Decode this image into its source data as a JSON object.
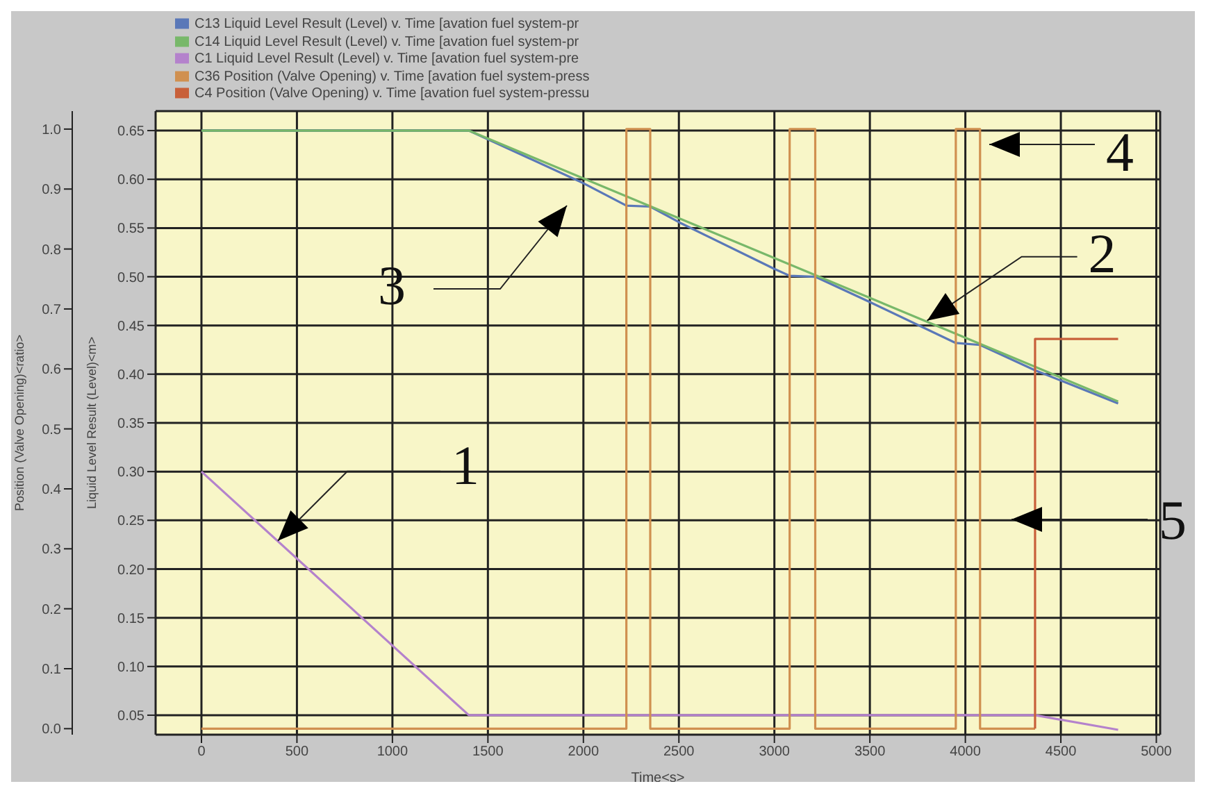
{
  "chart_data": {
    "type": "line",
    "xlabel": "Time<s>",
    "ylabel": "Liquid Level Result (Level)<m>",
    "y2label": "Position (Valve Opening)<ratio>",
    "xlim": [
      -240,
      5020
    ],
    "xticks": [
      0,
      500,
      1000,
      1500,
      2000,
      2500,
      3000,
      3500,
      4000,
      4500,
      5000
    ],
    "ylim": [
      0.03,
      0.67
    ],
    "yticks": [
      0.05,
      {
        "value": 0.1,
        "label": "0.10"
      },
      0.15,
      {
        "value": 0.2,
        "label": "0.20"
      },
      0.25,
      {
        "value": 0.3,
        "label": "0.30"
      },
      0.35,
      {
        "value": 0.4,
        "label": "0.40"
      },
      0.45,
      {
        "value": 0.5,
        "label": "0.50"
      },
      0.55,
      {
        "value": 0.6,
        "label": "0.60"
      },
      0.65
    ],
    "y2lim": [
      -0.01,
      1.03
    ],
    "y2ticks": [
      {
        "value": 0,
        "label": "0.0"
      },
      0.1,
      0.2,
      0.3,
      0.4,
      0.5,
      0.6,
      0.7,
      0.8,
      0.9,
      {
        "value": 1,
        "label": "1.0"
      }
    ],
    "grid": true,
    "legend": "top left",
    "series": [
      {
        "name": "C13 Liquid Level Result (Level) v. Time [avation fuel system-pr",
        "color": "#5a78b8",
        "x": [
          0,
          1400,
          2000,
          2225,
          2350,
          2500,
          3000,
          3080,
          3214,
          3500,
          3950,
          4077,
          4365,
          4800
        ],
        "values": [
          0.65,
          0.65,
          0.596,
          0.573,
          0.572,
          0.556,
          0.508,
          0.501,
          0.5,
          0.474,
          0.432,
          0.43,
          0.404,
          0.37
        ]
      },
      {
        "name": "C14 Liquid Level Result (Level) v. Time [avation fuel system-pr",
        "color": "#78b86a",
        "x": [
          0,
          1400,
          4800
        ],
        "values": [
          0.65,
          0.65,
          0.372
        ]
      },
      {
        "name": "C1 Liquid Level Result (Level) v. Time [avation fuel system-pre",
        "color": "#b482cc",
        "x": [
          0,
          1400,
          4365,
          4800
        ],
        "values": [
          0.3,
          0.05,
          0.05,
          0.035
        ]
      },
      {
        "name": "C36 Position (Valve Opening) v. Time [avation fuel system-press",
        "color": "#d09050",
        "axis": "y2",
        "x": [
          0,
          2225,
          2225,
          2350,
          2350,
          3080,
          3080,
          3214,
          3214,
          3950,
          3950,
          4077,
          4077,
          4365
        ],
        "values": [
          0,
          0,
          1,
          1,
          0,
          0,
          1,
          1,
          0,
          0,
          1,
          1,
          0,
          0
        ]
      },
      {
        "name": "C4 Position (Valve Opening) v. Time [avation fuel system-pressu",
        "color": "#c8603a",
        "axis": "y2",
        "x": [
          4365,
          4365,
          4800
        ],
        "values": [
          0,
          0.65,
          0.65
        ]
      }
    ],
    "annotations": [
      {
        "text": "1",
        "x": 400,
        "y": 0.229
      },
      {
        "text": "2",
        "x": 3800,
        "y": 0.455
      },
      "3",
      "4",
      "5"
    ]
  }
}
